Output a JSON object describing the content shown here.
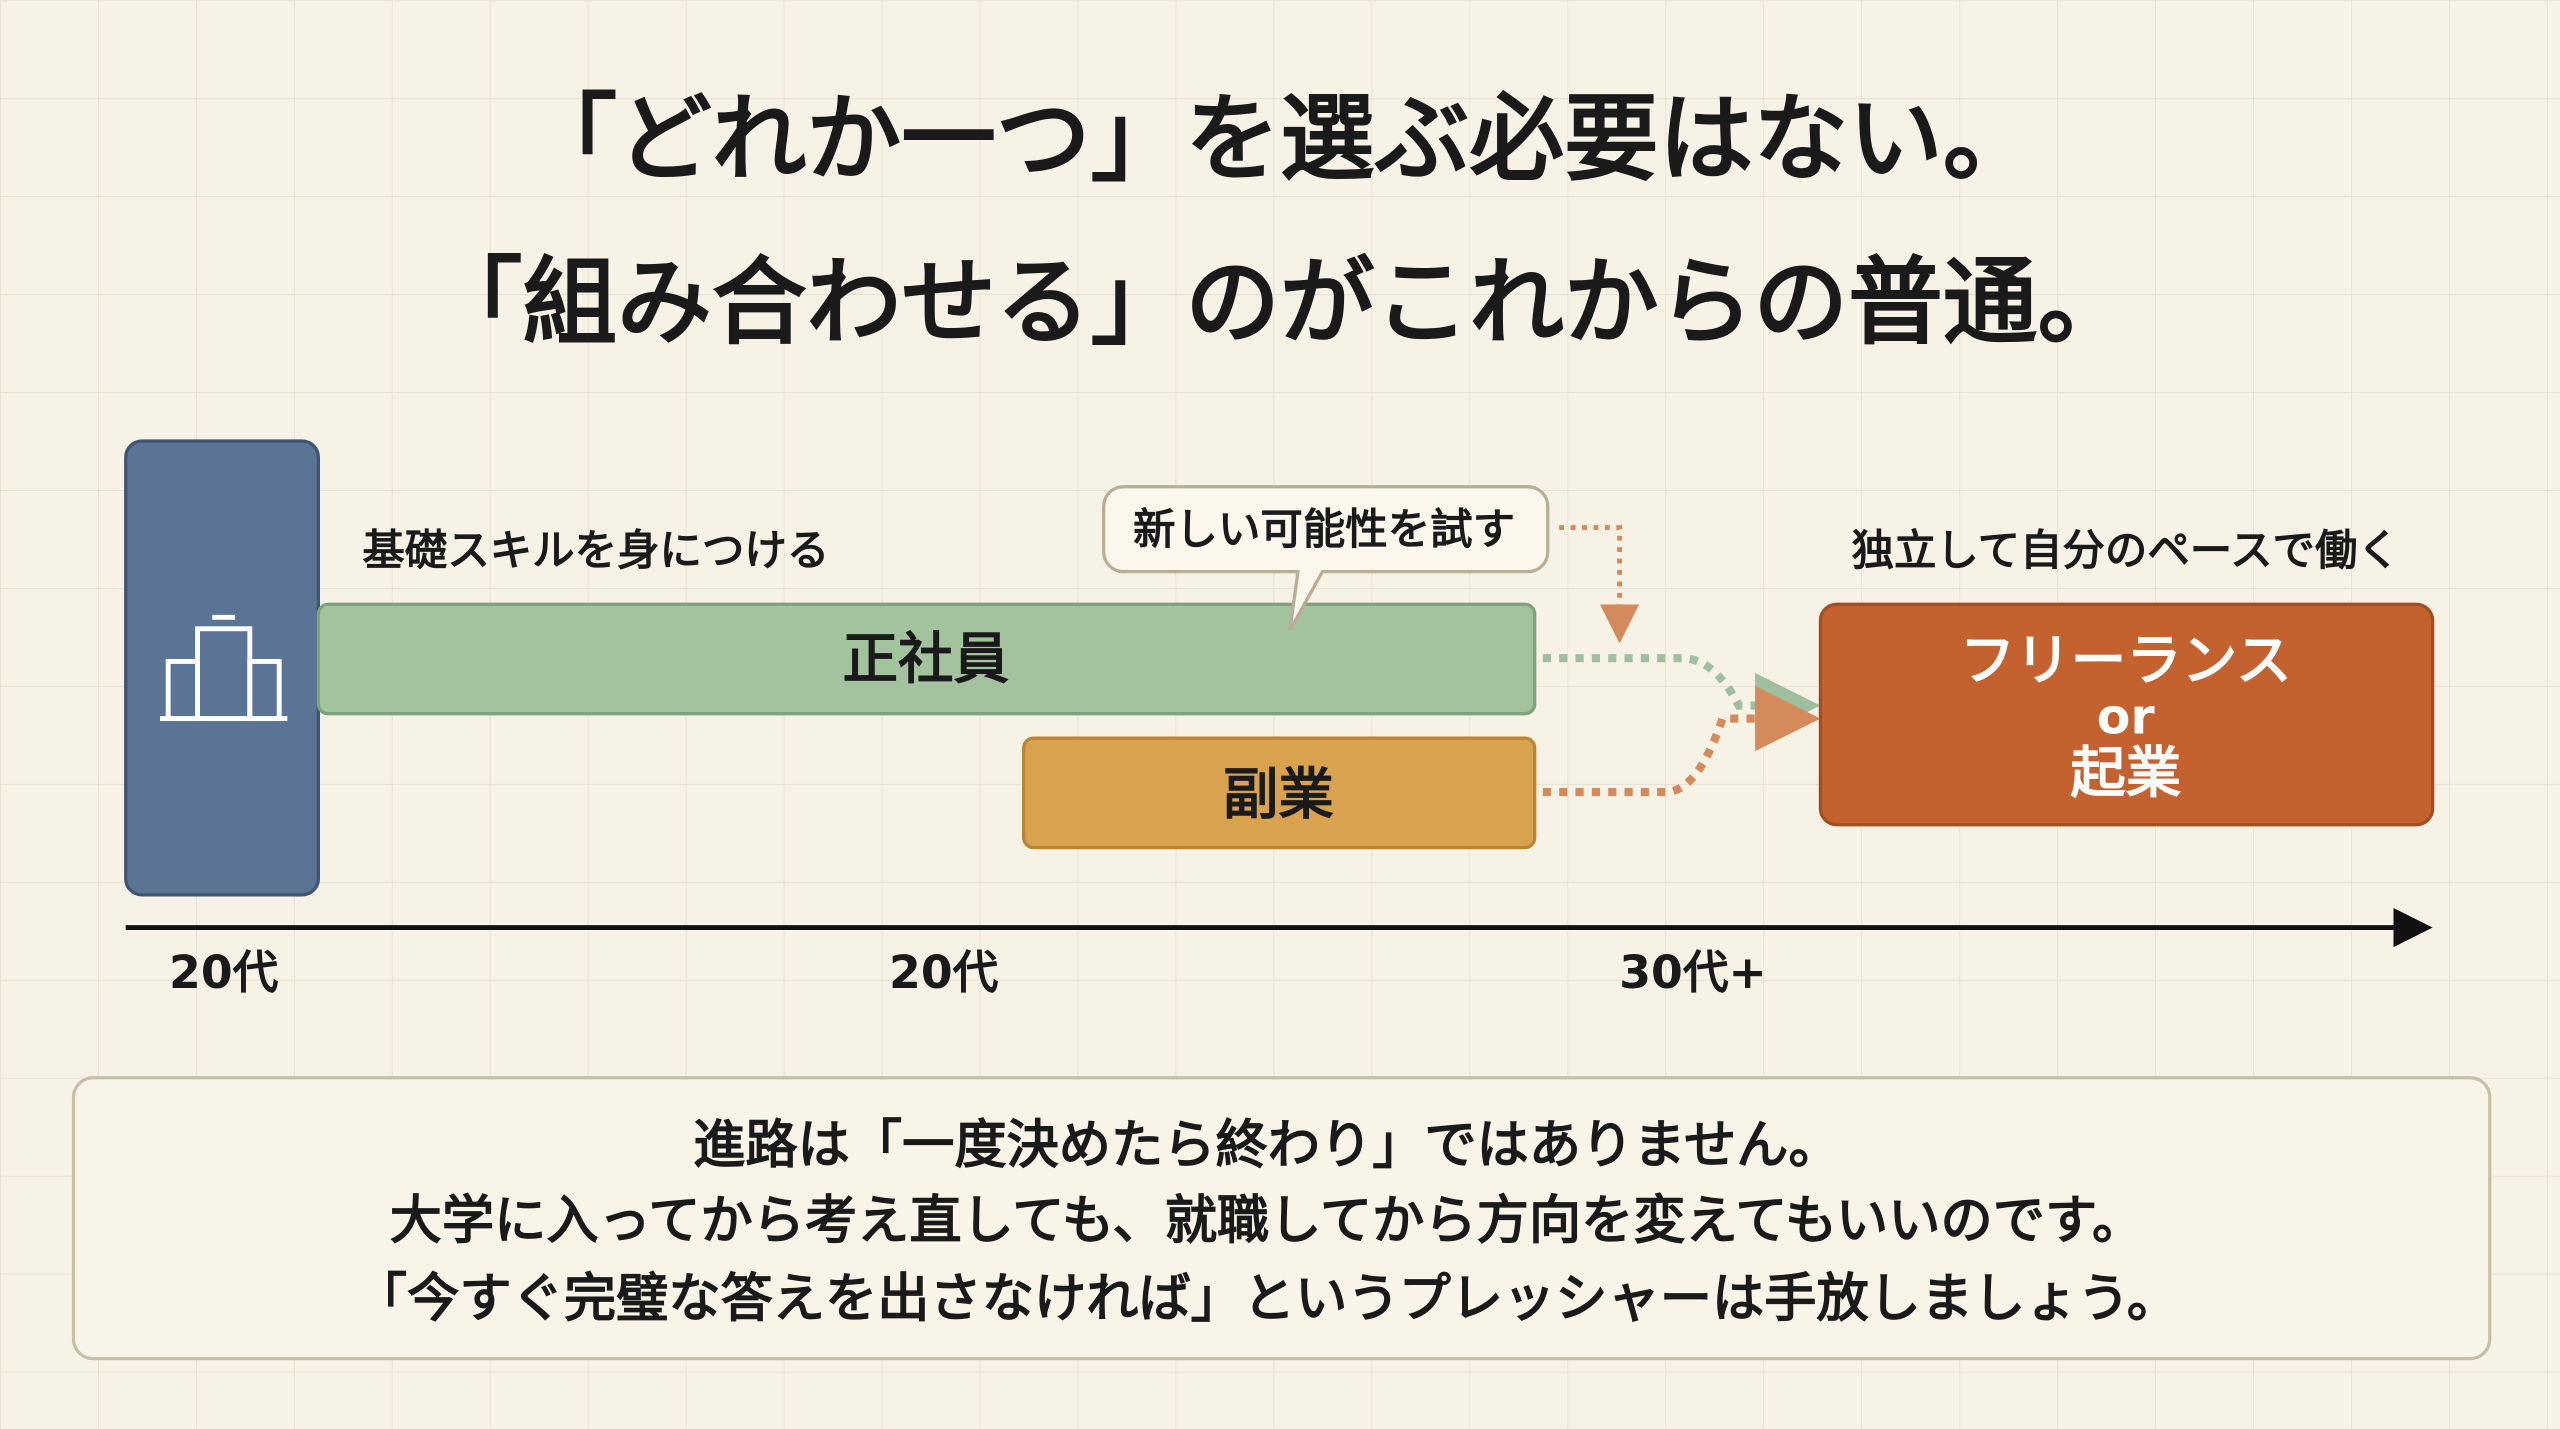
{
  "title": {
    "lines": [
      "「どれか一つ」を選ぶ必要はない。",
      "「組み合わせる」のがこれからの普通。"
    ]
  },
  "nodes": [
    {
      "caption": "基礎スキルを身につける",
      "label": "正社員"
    },
    {
      "label": "副業"
    },
    {
      "caption": "独立して自分のペースで働く",
      "label_lines": [
        "フリーランス",
        "or",
        "起業"
      ]
    }
  ],
  "bubble": "新しい可能性を試す",
  "timeline": [
    "20代",
    "20代",
    "30代+"
  ],
  "footer": {
    "lines": [
      "進路は「一度決めたら終わり」ではありません。",
      "大学に入ってから考え直しても、就職してから方向を変えてもいいのです。",
      "「今すぐ完璧な答えを出さなければ」というプレッシャーは手放しましょう。"
    ]
  }
}
